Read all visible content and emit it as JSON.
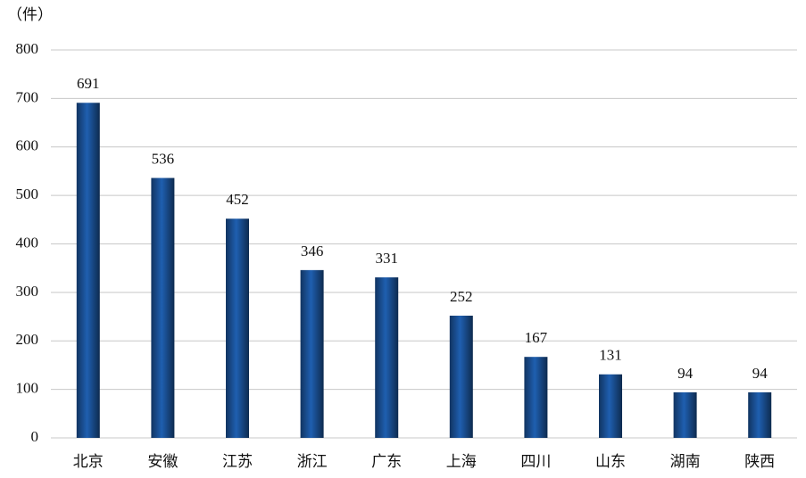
{
  "chart_data": {
    "type": "bar",
    "y_label": "（件）",
    "categories": [
      "北京",
      "安徽",
      "江苏",
      "浙江",
      "广东",
      "上海",
      "四川",
      "山东",
      "湖南",
      "陕西"
    ],
    "values": [
      691,
      536,
      452,
      346,
      331,
      252,
      167,
      131,
      94,
      94
    ],
    "color": "#1f5fb0",
    "ylim": [
      0,
      800
    ],
    "yticks": [
      0,
      100,
      200,
      300,
      400,
      500,
      600,
      700,
      800
    ],
    "grid": true
  }
}
